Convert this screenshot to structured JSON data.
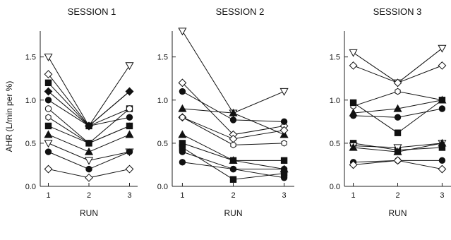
{
  "chart_data": [
    {
      "type": "line",
      "title": "SESSION 1",
      "xlabel": "RUN",
      "ylabel": "AHR (L/min per %)",
      "x": [
        1,
        2,
        3
      ],
      "ylim": [
        0,
        1.8
      ],
      "yticks": [
        "0.0",
        "0.5",
        "1.0",
        "1.5"
      ],
      "grid": false,
      "series": [
        {
          "marker": "triangle-down-open",
          "values": [
            1.5,
            0.7,
            1.4
          ]
        },
        {
          "marker": "diamond-open",
          "values": [
            1.3,
            0.7,
            1.1
          ]
        },
        {
          "marker": "square-filled",
          "values": [
            1.2,
            0.7,
            0.9
          ]
        },
        {
          "marker": "diamond-filled",
          "values": [
            1.1,
            0.7,
            1.1
          ]
        },
        {
          "marker": "circle-filled",
          "values": [
            1.0,
            0.7,
            0.8
          ]
        },
        {
          "marker": "circle-open",
          "values": [
            0.9,
            0.5,
            0.9
          ]
        },
        {
          "marker": "hexagon-open",
          "values": [
            0.8,
            0.5,
            0.7
          ]
        },
        {
          "marker": "square-filled",
          "values": [
            0.7,
            0.5,
            0.7
          ]
        },
        {
          "marker": "triangle-up-filled",
          "values": [
            0.6,
            0.4,
            0.6
          ]
        },
        {
          "marker": "triangle-down-open",
          "values": [
            0.5,
            0.3,
            0.4
          ]
        },
        {
          "marker": "circle-filled",
          "values": [
            0.4,
            0.2,
            0.4
          ]
        },
        {
          "marker": "diamond-open",
          "values": [
            0.2,
            0.1,
            0.2
          ]
        }
      ]
    },
    {
      "type": "line",
      "title": "SESSION 2",
      "xlabel": "RUN",
      "ylabel": "",
      "x": [
        1,
        2,
        3
      ],
      "ylim": [
        0,
        1.8
      ],
      "yticks": [
        "0.0",
        "0.5",
        "1.0",
        "1.5"
      ],
      "grid": false,
      "series": [
        {
          "marker": "triangle-down-open",
          "values": [
            1.8,
            0.85,
            1.1
          ]
        },
        {
          "marker": "diamond-open",
          "values": [
            1.2,
            0.6,
            0.7
          ]
        },
        {
          "marker": "circle-filled",
          "values": [
            1.1,
            0.77,
            0.75
          ]
        },
        {
          "marker": "triangle-up-filled",
          "values": [
            0.9,
            0.85,
            0.6
          ]
        },
        {
          "marker": "diamond-open",
          "values": [
            0.8,
            0.55,
            0.65
          ]
        },
        {
          "marker": "hexagon-open",
          "values": [
            0.8,
            0.48,
            0.5
          ]
        },
        {
          "marker": "triangle-up-filled",
          "values": [
            0.6,
            0.3,
            0.2
          ]
        },
        {
          "marker": "square-filled",
          "values": [
            0.5,
            0.3,
            0.3
          ]
        },
        {
          "marker": "square-filled",
          "values": [
            0.45,
            0.08,
            0.15
          ]
        },
        {
          "marker": "circle-filled",
          "values": [
            0.4,
            0.2,
            0.1
          ]
        },
        {
          "marker": "circle-filled",
          "values": [
            0.28,
            0.2,
            0.2
          ]
        }
      ]
    },
    {
      "type": "line",
      "title": "SESSION 3",
      "xlabel": "RUN",
      "ylabel": "",
      "x": [
        1,
        2,
        3
      ],
      "ylim": [
        0,
        1.8
      ],
      "yticks": [
        "0.0",
        "0.5",
        "1.0",
        "1.5"
      ],
      "grid": false,
      "series": [
        {
          "marker": "triangle-down-open",
          "values": [
            1.55,
            1.2,
            1.6
          ]
        },
        {
          "marker": "diamond-open",
          "values": [
            1.4,
            1.2,
            1.4
          ]
        },
        {
          "marker": "hexagon-open",
          "values": [
            0.93,
            1.1,
            1.0
          ]
        },
        {
          "marker": "square-filled",
          "values": [
            0.97,
            0.62,
            1.0
          ]
        },
        {
          "marker": "triangle-up-filled",
          "values": [
            0.85,
            0.9,
            1.0
          ]
        },
        {
          "marker": "circle-filled",
          "values": [
            0.82,
            0.8,
            0.9
          ]
        },
        {
          "marker": "square-filled",
          "values": [
            0.5,
            0.42,
            0.45
          ]
        },
        {
          "marker": "triangle-down-open",
          "values": [
            0.47,
            0.45,
            0.5
          ]
        },
        {
          "marker": "triangle-up-filled",
          "values": [
            0.45,
            0.4,
            0.5
          ]
        },
        {
          "marker": "circle-filled",
          "values": [
            0.28,
            0.3,
            0.3
          ]
        },
        {
          "marker": "diamond-open",
          "values": [
            0.25,
            0.3,
            0.2
          ]
        }
      ]
    }
  ]
}
